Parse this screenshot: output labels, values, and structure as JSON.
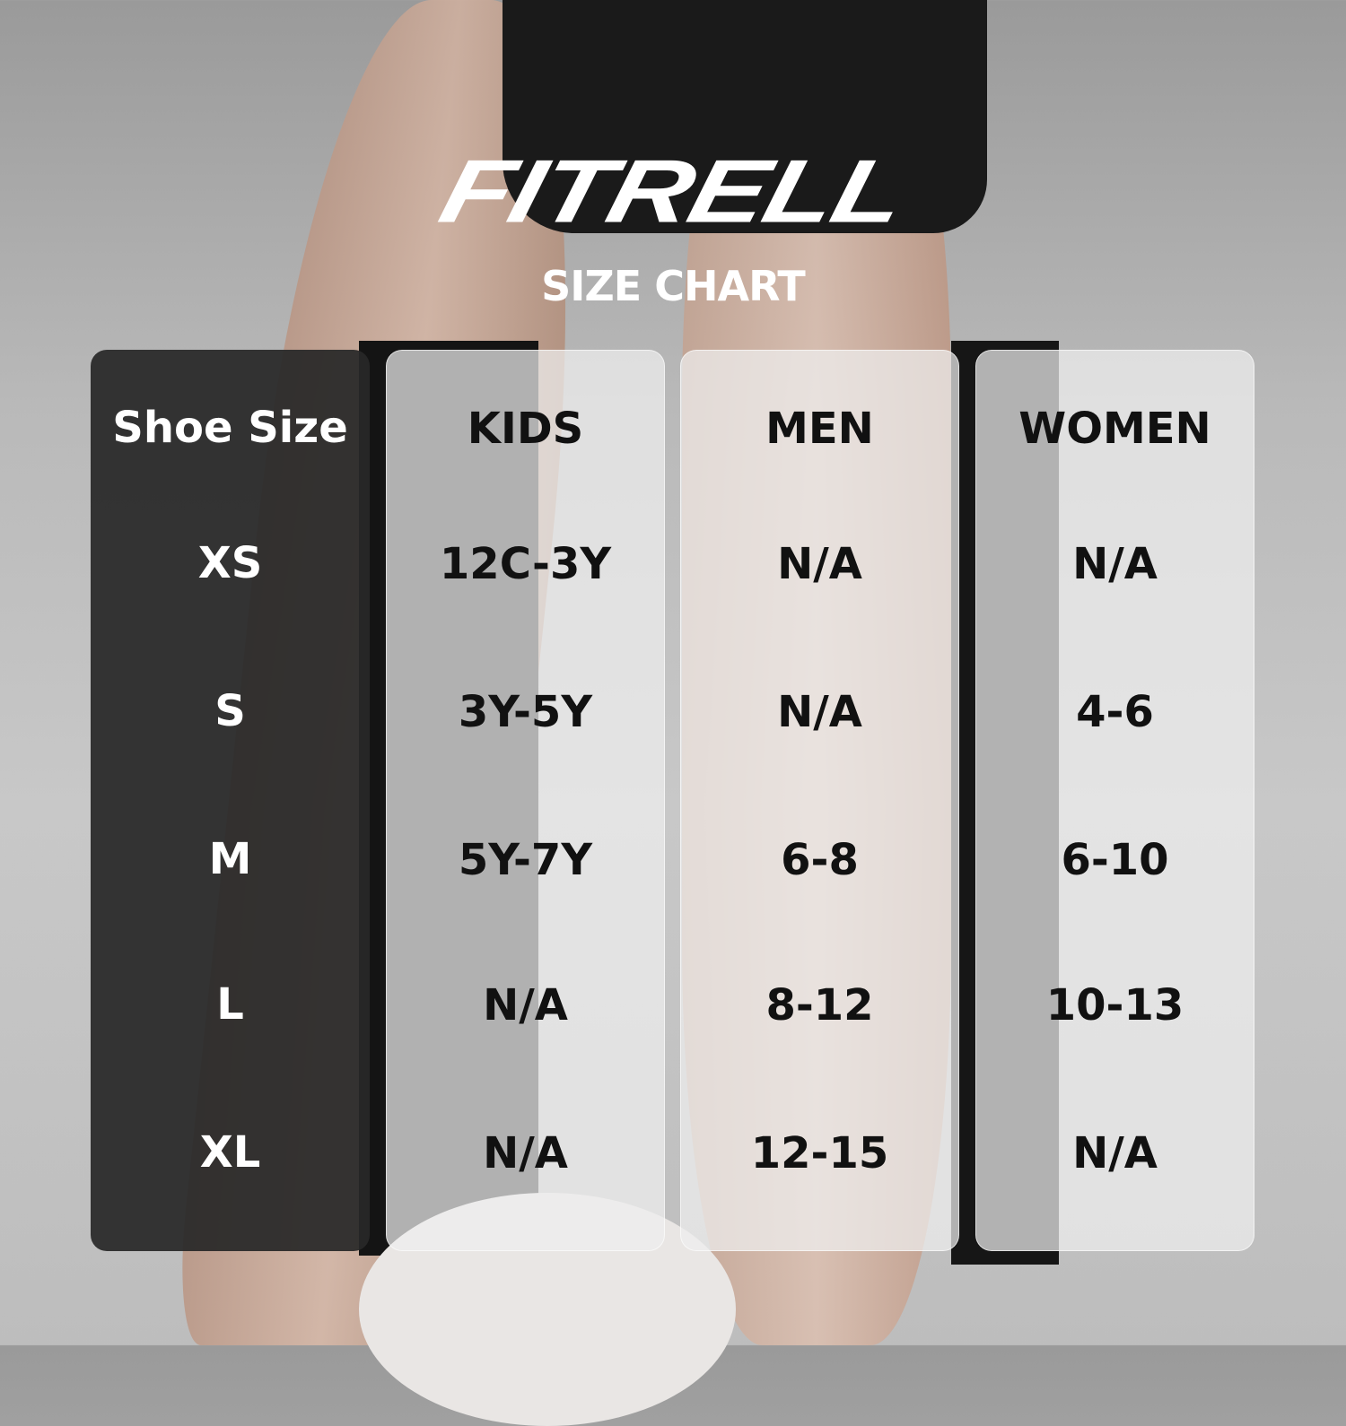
{
  "brand": "FITRELL",
  "subtitle": "SIZE CHART",
  "columns": [
    {
      "header": "Shoe Size",
      "values": [
        "XS",
        "S",
        "M",
        "L",
        "XL"
      ]
    },
    {
      "header": "KIDS",
      "values": [
        "12C-3Y",
        "3Y-5Y",
        "5Y-7Y",
        "N/A",
        "N/A"
      ]
    },
    {
      "header": "MEN",
      "values": [
        "N/A",
        "N/A",
        "6-8",
        "8-12",
        "12-15"
      ]
    },
    {
      "header": "WOMEN",
      "values": [
        "N/A",
        "4-6",
        "6-10",
        "10-13",
        "N/A"
      ]
    }
  ]
}
